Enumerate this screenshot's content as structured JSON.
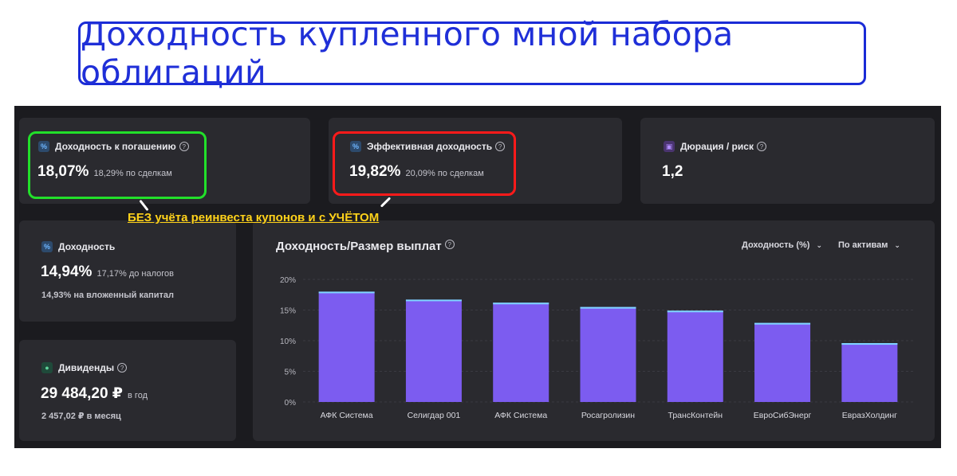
{
  "header": {
    "title": "Доходность купленного мной набора облигаций"
  },
  "cards": {
    "ytm": {
      "label": "Доходность к погашению",
      "value": "18,07%",
      "sub": "18,29% по сделкам",
      "icon": "percent-icon"
    },
    "effective": {
      "label": "Эффективная доходность",
      "value": "19,82%",
      "sub": "20,09% по сделкам",
      "icon": "percent-icon"
    },
    "duration": {
      "label": "Дюрация / риск",
      "value": "1,2",
      "icon": "calendar-icon"
    },
    "yield": {
      "label": "Доходность",
      "value": "14,94%",
      "sub": "17,17% до налогов",
      "line2": "14,93% на вложенный капитал",
      "icon": "percent-icon"
    },
    "dividends": {
      "label": "Дивиденды",
      "value": "29 484,20 ₽",
      "sub": "в год",
      "line2": "2 457,02 ₽ в месяц",
      "icon": "piggy-bank-icon"
    }
  },
  "annotation": {
    "text": "БЕЗ учёта реинвеста купонов и с УЧЁТОМ"
  },
  "highlight_colors": {
    "ytm": "#22e02a",
    "effective": "#ff1a1a"
  },
  "chart_panel": {
    "title": "Доходность/Размер выплат",
    "dropdown_metric": "Доходность (%)",
    "dropdown_grouping": "По активам"
  },
  "chart_data": {
    "type": "bar",
    "categories": [
      "АФК Система",
      "Селигдар 001",
      "АФК Система",
      "Росагролизин",
      "ТрансКонтейн",
      "ЕвроСибЭнерг",
      "ЕвразХолдинг"
    ],
    "values": [
      18.0,
      16.7,
      16.2,
      15.5,
      14.9,
      12.9,
      9.6
    ],
    "ylim": [
      0,
      20
    ],
    "yticks": [
      "0%",
      "5%",
      "10%",
      "15%",
      "20%"
    ],
    "ytick_values": [
      0,
      5,
      10,
      15,
      20
    ],
    "grid": true,
    "bar_color": "#7c5cf0",
    "bar_cap_color": "#7fd6ff"
  }
}
